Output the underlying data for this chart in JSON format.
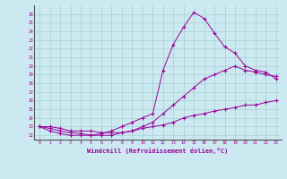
{
  "xlabel": "Windchill (Refroidissement éolien,°C)",
  "background_color": "#cce8f0",
  "line_color": "#990099",
  "xlim": [
    -0.5,
    23.5
  ],
  "ylim": [
    11.5,
    27
  ],
  "xticks": [
    0,
    1,
    2,
    3,
    4,
    5,
    6,
    7,
    8,
    9,
    10,
    11,
    12,
    13,
    14,
    15,
    16,
    17,
    18,
    19,
    20,
    21,
    22,
    23
  ],
  "yticks": [
    12,
    13,
    14,
    15,
    16,
    17,
    18,
    19,
    20,
    21,
    22,
    23,
    24,
    25,
    26
  ],
  "series": [
    {
      "x": [
        0,
        1,
        2,
        3,
        4,
        5,
        6,
        7,
        8,
        9,
        10,
        11,
        12,
        13,
        14,
        15,
        16,
        17,
        18,
        19,
        20,
        21,
        22,
        23
      ],
      "y": [
        13.0,
        13.0,
        12.8,
        12.5,
        12.5,
        12.5,
        12.3,
        12.3,
        12.3,
        12.5,
        12.8,
        13.0,
        13.2,
        13.5,
        14.0,
        14.3,
        14.5,
        14.8,
        15.0,
        15.2,
        15.5,
        15.5,
        15.8,
        16.0
      ]
    },
    {
      "x": [
        0,
        1,
        2,
        3,
        4,
        5,
        6,
        7,
        8,
        9,
        10,
        11,
        12,
        13,
        14,
        15,
        16,
        17,
        18,
        19,
        20,
        21,
        22,
        23
      ],
      "y": [
        13.0,
        12.5,
        12.2,
        12.0,
        12.0,
        12.0,
        12.0,
        12.0,
        12.3,
        12.5,
        13.0,
        13.5,
        14.5,
        15.5,
        16.5,
        17.5,
        18.5,
        19.0,
        19.5,
        20.0,
        19.5,
        19.3,
        19.0,
        18.8
      ]
    },
    {
      "x": [
        0,
        1,
        2,
        3,
        4,
        5,
        6,
        7,
        8,
        9,
        10,
        11,
        12,
        13,
        14,
        15,
        16,
        17,
        18,
        19,
        20,
        21,
        22,
        23
      ],
      "y": [
        13.0,
        12.8,
        12.5,
        12.3,
        12.2,
        12.0,
        12.2,
        12.5,
        13.0,
        13.5,
        14.0,
        14.5,
        19.5,
        22.5,
        24.5,
        26.2,
        25.5,
        23.8,
        22.2,
        21.5,
        20.0,
        19.5,
        19.3,
        18.5
      ]
    }
  ]
}
